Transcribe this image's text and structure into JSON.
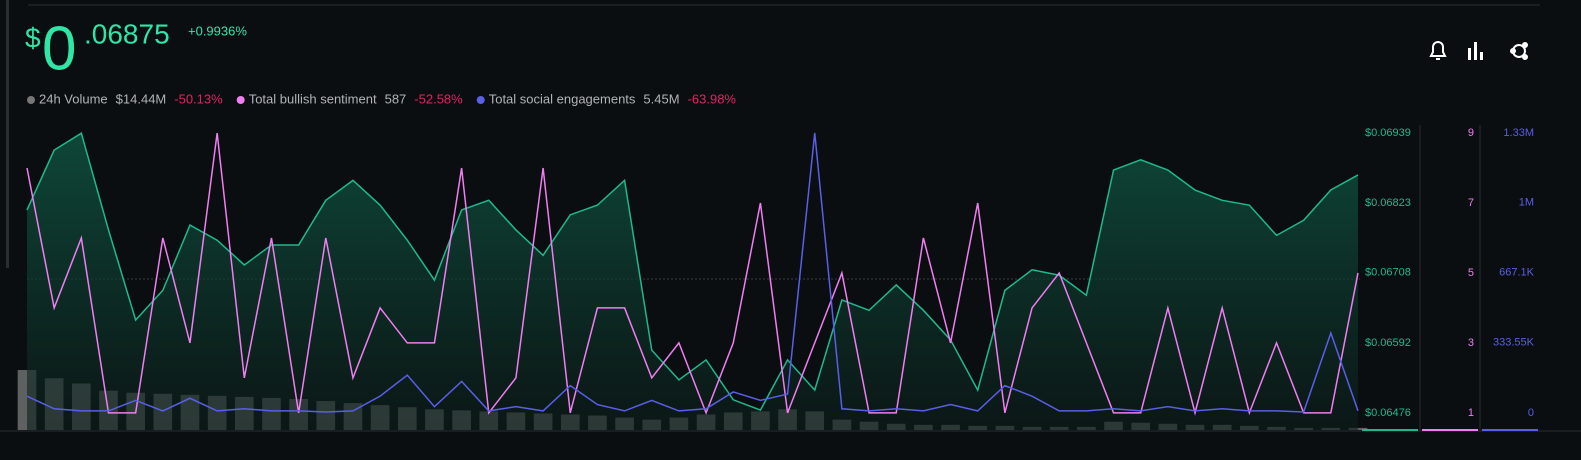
{
  "chart_data": {
    "type": "line",
    "header": {
      "currency": "$",
      "integer": "0",
      "fraction": ".06875",
      "change": "+0.9936%"
    },
    "price": {
      "color": "#1fb88e",
      "values": [
        0.06812,
        0.06911,
        0.06939,
        0.06779,
        0.0663,
        0.06679,
        0.06787,
        0.06762,
        0.06721,
        0.06754,
        0.06754,
        0.06828,
        0.06861,
        0.0682,
        0.06762,
        0.06696,
        0.06812,
        0.06828,
        0.06779,
        0.06737,
        0.06804,
        0.0682,
        0.06861,
        0.0658,
        0.06531,
        0.06564,
        0.06498,
        0.06481,
        0.06564,
        0.06514,
        0.06663,
        0.06646,
        0.06688,
        0.06646,
        0.06597,
        0.06514,
        0.06679,
        0.06713,
        0.06704,
        0.06671,
        0.06878,
        0.06895,
        0.06878,
        0.06845,
        0.06828,
        0.0682,
        0.0677,
        0.06795,
        0.06845,
        0.0687
      ],
      "ylim": [
        0.06448,
        0.06941
      ],
      "yticks": [
        {
          "value": 0.06939,
          "label": "$0.06939"
        },
        {
          "value": 0.06823,
          "label": "$0.06823"
        },
        {
          "value": 0.06708,
          "label": "$0.06708"
        },
        {
          "value": 0.06592,
          "label": "$0.06592"
        },
        {
          "value": 0.06476,
          "label": "$0.06476"
        }
      ]
    },
    "series": [
      {
        "name": "24h Volume",
        "total": "$14.44M",
        "change": "-50.13%",
        "color": "#8a8a8a",
        "kind": "bar",
        "values": [
          58,
          50,
          45,
          38,
          36,
          35,
          34,
          33,
          32,
          31,
          30,
          28,
          26,
          24,
          22,
          20,
          19,
          18,
          17,
          16,
          15,
          14,
          12,
          10,
          12,
          15,
          17,
          18,
          20,
          18,
          10,
          8,
          6,
          5,
          5,
          4,
          4,
          3,
          3,
          3,
          8,
          7,
          6,
          5,
          5,
          4,
          3,
          2,
          2,
          2
        ]
      },
      {
        "name": "Total bullish sentiment",
        "total": "587",
        "change": "-52.58%",
        "color": "#f07ef0",
        "kind": "line",
        "values": [
          8,
          4,
          6,
          1,
          1,
          6,
          3,
          9,
          2,
          6,
          1,
          6,
          2,
          4,
          3,
          3,
          8,
          1,
          2,
          8,
          1,
          4,
          4,
          2,
          3,
          1,
          3,
          7,
          1,
          3,
          5,
          1,
          1,
          6,
          3,
          7,
          1,
          4,
          5,
          3,
          1,
          1,
          4,
          1,
          4,
          1,
          3,
          1,
          1,
          5
        ],
        "ylim": [
          0.51,
          9.03
        ],
        "yticks": [
          9,
          7,
          5,
          3,
          1
        ]
      },
      {
        "name": "Total social engagements",
        "total": "5.45M",
        "change": "-63.98%",
        "color": "#5a5ee8",
        "kind": "line",
        "values": [
          80000,
          20000,
          10000,
          10000,
          60000,
          10000,
          70000,
          10000,
          20000,
          10000,
          10000,
          5000,
          10000,
          80000,
          180000,
          30000,
          150000,
          10000,
          30000,
          10000,
          130000,
          40000,
          10000,
          60000,
          10000,
          20000,
          100000,
          60000,
          90000,
          1330000,
          20000,
          10000,
          20000,
          10000,
          40000,
          10000,
          130000,
          80000,
          10000,
          10000,
          20000,
          10000,
          30000,
          10000,
          20000,
          10000,
          10000,
          5000,
          380000,
          10000
        ],
        "ylim": [
          -80750,
          1334750
        ],
        "yticks": [
          {
            "value": 1330000,
            "label": "1.33M"
          },
          {
            "value": 1000000,
            "label": "1M"
          },
          {
            "value": 667100,
            "label": "667.1K"
          },
          {
            "value": 333550,
            "label": "333.55K"
          },
          {
            "value": 0,
            "label": "0"
          }
        ]
      }
    ]
  }
}
